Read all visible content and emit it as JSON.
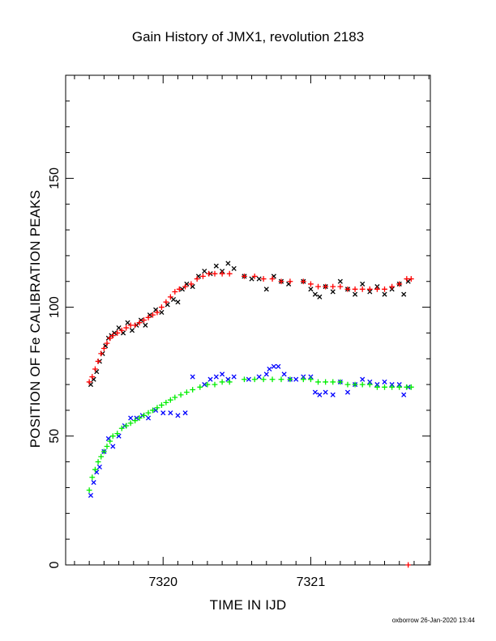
{
  "chart_data": {
    "type": "scatter",
    "title": "Gain History of JMX1, revolution 2183",
    "xlabel": "TIME IN IJD",
    "ylabel": "POSITION OF Fe CALIBRATION PEAKS",
    "xlim": [
      7319.34,
      7321.81
    ],
    "ylim": [
      0,
      190
    ],
    "x_ticks": [
      7320,
      7321
    ],
    "y_ticks": [
      0,
      50,
      100,
      150
    ],
    "grid": false,
    "legend": "none",
    "series": [
      {
        "marker": "x",
        "color": "#000000",
        "points": [
          [
            7319.51,
            70
          ],
          [
            7319.53,
            72
          ],
          [
            7319.55,
            75
          ],
          [
            7319.57,
            79
          ],
          [
            7319.59,
            82
          ],
          [
            7319.61,
            85
          ],
          [
            7319.63,
            88
          ],
          [
            7319.65,
            89
          ],
          [
            7319.67,
            90
          ],
          [
            7319.7,
            92
          ],
          [
            7319.73,
            90
          ],
          [
            7319.76,
            94
          ],
          [
            7319.79,
            91
          ],
          [
            7319.82,
            93
          ],
          [
            7319.85,
            95
          ],
          [
            7319.88,
            93
          ],
          [
            7319.91,
            97
          ],
          [
            7319.95,
            99
          ],
          [
            7319.99,
            98
          ],
          [
            7320.03,
            101
          ],
          [
            7320.07,
            103
          ],
          [
            7320.1,
            102
          ],
          [
            7320.13,
            107
          ],
          [
            7320.16,
            109
          ],
          [
            7320.2,
            108
          ],
          [
            7320.24,
            112
          ],
          [
            7320.28,
            114
          ],
          [
            7320.32,
            113
          ],
          [
            7320.36,
            116
          ],
          [
            7320.4,
            114
          ],
          [
            7320.44,
            117
          ],
          [
            7320.48,
            115
          ],
          [
            7320.55,
            112
          ],
          [
            7320.6,
            111
          ],
          [
            7320.65,
            111
          ],
          [
            7320.7,
            107
          ],
          [
            7320.75,
            112
          ],
          [
            7320.8,
            110
          ],
          [
            7320.85,
            109
          ],
          [
            7320.95,
            110
          ],
          [
            7321.0,
            107
          ],
          [
            7321.03,
            105
          ],
          [
            7321.06,
            104
          ],
          [
            7321.1,
            108
          ],
          [
            7321.15,
            106
          ],
          [
            7321.2,
            110
          ],
          [
            7321.25,
            107
          ],
          [
            7321.3,
            105
          ],
          [
            7321.35,
            109
          ],
          [
            7321.4,
            106
          ],
          [
            7321.45,
            108
          ],
          [
            7321.5,
            105
          ],
          [
            7321.55,
            107
          ],
          [
            7321.6,
            109
          ],
          [
            7321.63,
            105
          ],
          [
            7321.66,
            110
          ]
        ]
      },
      {
        "marker": "+",
        "color": "#ff0000",
        "points": [
          [
            7319.5,
            71
          ],
          [
            7319.52,
            73
          ],
          [
            7319.54,
            76
          ],
          [
            7319.56,
            79
          ],
          [
            7319.58,
            82
          ],
          [
            7319.6,
            84
          ],
          [
            7319.62,
            86
          ],
          [
            7319.64,
            88
          ],
          [
            7319.66,
            89
          ],
          [
            7319.69,
            90
          ],
          [
            7319.72,
            91
          ],
          [
            7319.75,
            92
          ],
          [
            7319.78,
            93
          ],
          [
            7319.81,
            93
          ],
          [
            7319.84,
            94
          ],
          [
            7319.87,
            95
          ],
          [
            7319.9,
            96
          ],
          [
            7319.93,
            97
          ],
          [
            7319.96,
            98
          ],
          [
            7319.99,
            100
          ],
          [
            7320.02,
            102
          ],
          [
            7320.05,
            104
          ],
          [
            7320.08,
            106
          ],
          [
            7320.11,
            107
          ],
          [
            7320.15,
            108
          ],
          [
            7320.19,
            109
          ],
          [
            7320.23,
            111
          ],
          [
            7320.27,
            112
          ],
          [
            7320.31,
            113
          ],
          [
            7320.35,
            113
          ],
          [
            7320.4,
            113
          ],
          [
            7320.45,
            113
          ],
          [
            7320.55,
            112
          ],
          [
            7320.62,
            112
          ],
          [
            7320.68,
            111
          ],
          [
            7320.74,
            111
          ],
          [
            7320.8,
            110
          ],
          [
            7320.86,
            110
          ],
          [
            7320.95,
            110
          ],
          [
            7321.0,
            109
          ],
          [
            7321.05,
            108
          ],
          [
            7321.1,
            108
          ],
          [
            7321.15,
            108
          ],
          [
            7321.2,
            108
          ],
          [
            7321.25,
            107
          ],
          [
            7321.3,
            107
          ],
          [
            7321.35,
            107
          ],
          [
            7321.4,
            107
          ],
          [
            7321.45,
            107
          ],
          [
            7321.5,
            107
          ],
          [
            7321.55,
            108
          ],
          [
            7321.6,
            109
          ],
          [
            7321.65,
            111
          ],
          [
            7321.68,
            111
          ]
        ]
      },
      {
        "marker": "x",
        "color": "#0000ff",
        "points": [
          [
            7319.51,
            27
          ],
          [
            7319.53,
            32
          ],
          [
            7319.55,
            36
          ],
          [
            7319.57,
            38
          ],
          [
            7319.6,
            44
          ],
          [
            7319.63,
            49
          ],
          [
            7319.66,
            46
          ],
          [
            7319.7,
            50
          ],
          [
            7319.74,
            54
          ],
          [
            7319.78,
            57
          ],
          [
            7319.82,
            57
          ],
          [
            7319.86,
            58
          ],
          [
            7319.9,
            57
          ],
          [
            7319.95,
            60
          ],
          [
            7320.0,
            59
          ],
          [
            7320.05,
            59
          ],
          [
            7320.1,
            58
          ],
          [
            7320.15,
            59
          ],
          [
            7320.2,
            73
          ],
          [
            7320.28,
            70
          ],
          [
            7320.32,
            72
          ],
          [
            7320.36,
            73
          ],
          [
            7320.4,
            74
          ],
          [
            7320.44,
            72
          ],
          [
            7320.48,
            73
          ],
          [
            7320.58,
            72
          ],
          [
            7320.65,
            73
          ],
          [
            7320.7,
            74
          ],
          [
            7320.72,
            76
          ],
          [
            7320.75,
            77
          ],
          [
            7320.78,
            77
          ],
          [
            7320.82,
            74
          ],
          [
            7320.86,
            72
          ],
          [
            7320.9,
            72
          ],
          [
            7320.95,
            73
          ],
          [
            7321.0,
            73
          ],
          [
            7321.03,
            67
          ],
          [
            7321.06,
            66
          ],
          [
            7321.1,
            67
          ],
          [
            7321.15,
            66
          ],
          [
            7321.2,
            71
          ],
          [
            7321.25,
            67
          ],
          [
            7321.3,
            70
          ],
          [
            7321.35,
            72
          ],
          [
            7321.4,
            71
          ],
          [
            7321.45,
            70
          ],
          [
            7321.5,
            71
          ],
          [
            7321.55,
            70
          ],
          [
            7321.6,
            70
          ],
          [
            7321.63,
            66
          ],
          [
            7321.66,
            69
          ]
        ]
      },
      {
        "marker": "+",
        "color": "#00ee00",
        "points": [
          [
            7319.5,
            29
          ],
          [
            7319.52,
            34
          ],
          [
            7319.54,
            37
          ],
          [
            7319.56,
            40
          ],
          [
            7319.58,
            42
          ],
          [
            7319.6,
            44
          ],
          [
            7319.62,
            46
          ],
          [
            7319.64,
            48
          ],
          [
            7319.66,
            50
          ],
          [
            7319.69,
            51
          ],
          [
            7319.72,
            53
          ],
          [
            7319.75,
            54
          ],
          [
            7319.78,
            55
          ],
          [
            7319.81,
            56
          ],
          [
            7319.84,
            57
          ],
          [
            7319.87,
            58
          ],
          [
            7319.9,
            59
          ],
          [
            7319.93,
            60
          ],
          [
            7319.96,
            61
          ],
          [
            7319.99,
            62
          ],
          [
            7320.02,
            63
          ],
          [
            7320.05,
            64
          ],
          [
            7320.08,
            65
          ],
          [
            7320.12,
            66
          ],
          [
            7320.16,
            67
          ],
          [
            7320.2,
            68
          ],
          [
            7320.25,
            69
          ],
          [
            7320.3,
            70
          ],
          [
            7320.35,
            70
          ],
          [
            7320.4,
            71
          ],
          [
            7320.45,
            71
          ],
          [
            7320.55,
            72
          ],
          [
            7320.62,
            72
          ],
          [
            7320.68,
            72
          ],
          [
            7320.74,
            72
          ],
          [
            7320.8,
            72
          ],
          [
            7320.86,
            72
          ],
          [
            7320.95,
            72
          ],
          [
            7321.0,
            72
          ],
          [
            7321.05,
            71
          ],
          [
            7321.1,
            71
          ],
          [
            7321.15,
            71
          ],
          [
            7321.2,
            71
          ],
          [
            7321.25,
            70
          ],
          [
            7321.3,
            70
          ],
          [
            7321.35,
            70
          ],
          [
            7321.4,
            70
          ],
          [
            7321.45,
            69
          ],
          [
            7321.5,
            69
          ],
          [
            7321.55,
            69
          ],
          [
            7321.6,
            69
          ],
          [
            7321.65,
            69
          ],
          [
            7321.68,
            69
          ]
        ]
      },
      {
        "marker": "+",
        "color": "#ff0000",
        "points": [
          [
            7321.66,
            0
          ]
        ]
      }
    ]
  },
  "footer": {
    "credit": "oxborrow 26-Jan-2020 13:44"
  },
  "colors": {
    "background": "#ffffff",
    "axis": "#000000"
  }
}
